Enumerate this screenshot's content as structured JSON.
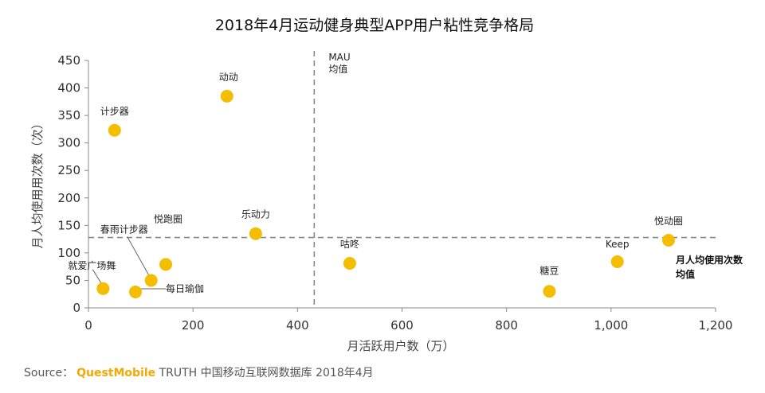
{
  "chart_data": {
    "type": "scatter",
    "title": "2018年4月运动健身典型APP用户粘性竞争格局",
    "xlabel": "月活跃用户数（万）",
    "ylabel": "月人均使用用次数（次）",
    "xlim": [
      0,
      1200
    ],
    "ylim": [
      0,
      450
    ],
    "x_ticks": [
      0,
      200,
      400,
      600,
      800,
      1000,
      1200
    ],
    "x_tick_labels": [
      "0",
      "200",
      "400",
      "600",
      "800",
      "1,000",
      "1,200"
    ],
    "y_ticks": [
      0,
      50,
      100,
      150,
      200,
      250,
      300,
      350,
      400,
      450
    ],
    "y_tick_labels": [
      "0",
      "50",
      "100",
      "150",
      "200",
      "250",
      "300",
      "350",
      "400",
      "450"
    ],
    "marker_color": "#f5bd00",
    "grid": false,
    "points": [
      {
        "name": "计步器",
        "x": 50,
        "y": 323
      },
      {
        "name": "动动",
        "x": 265,
        "y": 385
      },
      {
        "name": "乐动力",
        "x": 320,
        "y": 135
      },
      {
        "name": "悦跑圈",
        "x": 148,
        "y": 79
      },
      {
        "name": "春雨计步器",
        "x": 120,
        "y": 50
      },
      {
        "name": "就爱广场舞",
        "x": 28,
        "y": 35
      },
      {
        "name": "每日瑜伽",
        "x": 90,
        "y": 29
      },
      {
        "name": "咕咚",
        "x": 500,
        "y": 81
      },
      {
        "name": "糖豆",
        "x": 882,
        "y": 30
      },
      {
        "name": "Keep",
        "x": 1012,
        "y": 84
      },
      {
        "name": "悦动圈",
        "x": 1110,
        "y": 123
      }
    ],
    "reference_lines": {
      "mau_mean_x": 432,
      "mau_mean_label_line1": "MAU",
      "mau_mean_label_line2": "均值",
      "usage_mean_y": 128,
      "usage_mean_label_line1": "月人均使用次数",
      "usage_mean_label_line2": "均值"
    }
  },
  "source": {
    "prefix": "Source：",
    "brand": "QuestMobile",
    "rest": " TRUTH 中国移动互联网数据库 2018年4月"
  }
}
